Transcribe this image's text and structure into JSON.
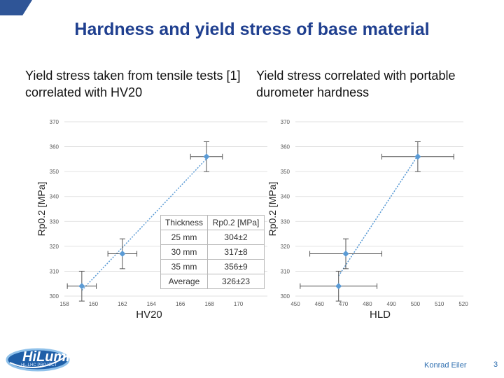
{
  "slide": {
    "title": "Hardness and yield stress of base material",
    "left_subtitle": "Yield stress taken from tensile tests [1] correlated with HV20",
    "right_subtitle": "Yield stress correlated with portable durometer hardness",
    "author": "Konrad Eiler",
    "page_number": "3",
    "logo_text": "HiLumi",
    "logo_subtext": "HL-LHC PROJECT"
  },
  "table": {
    "header": [
      "Thickness",
      "Rp0.2 [MPa]"
    ],
    "rows": [
      [
        "25 mm",
        "304±2"
      ],
      [
        "30 mm",
        "317±8"
      ],
      [
        "35 mm",
        "356±9"
      ],
      [
        "Average",
        "326±23"
      ]
    ]
  },
  "chart_data": [
    {
      "type": "scatter",
      "title": "Yield stress taken from tensile tests [1] correlated with HV20",
      "xlabel": "HV20",
      "ylabel": "Rp0.2 [MPa]",
      "xlim": [
        158,
        172
      ],
      "ylim": [
        300,
        370
      ],
      "xticks": [
        "158",
        "160",
        "162",
        "164",
        "166",
        "168",
        "170"
      ],
      "yticks": [
        "300",
        "310",
        "320",
        "330",
        "340",
        "350",
        "360",
        "370"
      ],
      "grid": true,
      "trendline": "linear dotted",
      "color": "#5b9bd5",
      "points": [
        {
          "x": 159.2,
          "y": 304,
          "xerr": 1.0,
          "yerr": 6
        },
        {
          "x": 162.0,
          "y": 317,
          "xerr": 1.0,
          "yerr": 6
        },
        {
          "x": 167.8,
          "y": 356,
          "xerr": 1.1,
          "yerr": 6
        }
      ]
    },
    {
      "type": "scatter",
      "title": "Yield stress correlated with portable durometer hardness",
      "xlabel": "HLD",
      "ylabel": "Rp0.2 [MPa]",
      "xlim": [
        450,
        520
      ],
      "ylim": [
        300,
        370
      ],
      "xticks": [
        "450",
        "460",
        "470",
        "480",
        "490",
        "500",
        "510",
        "520"
      ],
      "yticks": [
        "300",
        "310",
        "320",
        "330",
        "340",
        "350",
        "360",
        "370"
      ],
      "grid": true,
      "trendline": "linear dotted",
      "color": "#5b9bd5",
      "points": [
        {
          "x": 468,
          "y": 304,
          "xerr": 16,
          "yerr": 6
        },
        {
          "x": 471,
          "y": 317,
          "xerr": 15,
          "yerr": 6
        },
        {
          "x": 501,
          "y": 356,
          "xerr": 15,
          "yerr": 6
        }
      ]
    }
  ]
}
